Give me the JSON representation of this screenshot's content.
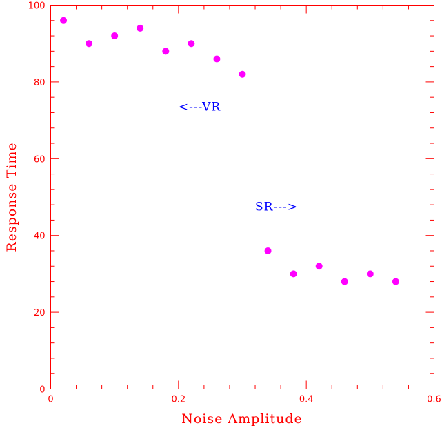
{
  "chart_data": {
    "type": "scatter",
    "title": "",
    "xlabel": "Noise Amplitude",
    "ylabel": "Response Time",
    "xlim": [
      0,
      0.6
    ],
    "ylim": [
      0,
      100
    ],
    "grid": false,
    "x_major_ticks": [
      0,
      0.2,
      0.4,
      0.6
    ],
    "x_tick_labels": [
      "0",
      "0.2",
      "0.4",
      "0.6"
    ],
    "y_major_ticks": [
      0,
      20,
      40,
      60,
      80,
      100
    ],
    "y_tick_labels": [
      "0",
      "20",
      "40",
      "60",
      "80",
      "100"
    ],
    "x_minor_step": 0.04,
    "y_minor_step": 4,
    "colors": {
      "axis": "#ff0000",
      "points": "#ff00ff",
      "annotations": "#0000ff"
    },
    "series": [
      {
        "x": [
          0.02,
          0.06,
          0.1,
          0.14,
          0.18,
          0.22,
          0.26,
          0.3,
          0.34,
          0.38,
          0.42,
          0.46,
          0.5,
          0.54
        ],
        "y": [
          96,
          90,
          92,
          94,
          88,
          90,
          86,
          82,
          36,
          30,
          32,
          28,
          30,
          28
        ]
      }
    ],
    "annotations": [
      {
        "text": "<---VR",
        "x": 0.2,
        "y": 72.5
      },
      {
        "text": "SR--->",
        "x": 0.32,
        "y": 46.5
      }
    ]
  }
}
